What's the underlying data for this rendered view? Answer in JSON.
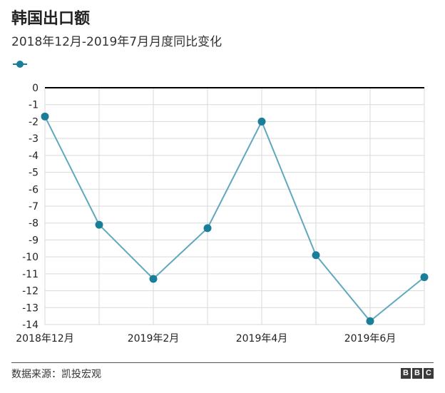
{
  "header": {
    "title": "韩国出口额",
    "subtitle": "2018年12月-2019年7月月度同比变化"
  },
  "footer": {
    "source": "数据来源：凯投宏观",
    "brand_letters": [
      "B",
      "B",
      "C"
    ]
  },
  "colors": {
    "series": "#1b7e99",
    "line": "#5fa8be",
    "grid": "#d9d9d9",
    "zero_line": "#000000"
  },
  "chart_data": {
    "type": "line",
    "x": [
      "2018年12月",
      "2019年1月",
      "2019年2月",
      "2019年3月",
      "2019年4月",
      "2019年5月",
      "2019年6月",
      "2019年7月"
    ],
    "x_tick_labels": [
      "2018年12月",
      "",
      "2019年2月",
      "",
      "2019年4月",
      "",
      "2019年6月",
      ""
    ],
    "series": [
      {
        "values": [
          -1.7,
          -8.1,
          -11.3,
          -8.3,
          -2.0,
          -9.9,
          -13.8,
          -11.2
        ]
      }
    ],
    "title": "",
    "xlabel": "",
    "ylabel": "",
    "ylim": [
      -14,
      0
    ],
    "yticks": [
      0,
      -1,
      -2,
      -3,
      -4,
      -5,
      -6,
      -7,
      -8,
      -9,
      -10,
      -11,
      -12,
      -13,
      -14
    ],
    "grid": true,
    "legend": "top-left"
  }
}
